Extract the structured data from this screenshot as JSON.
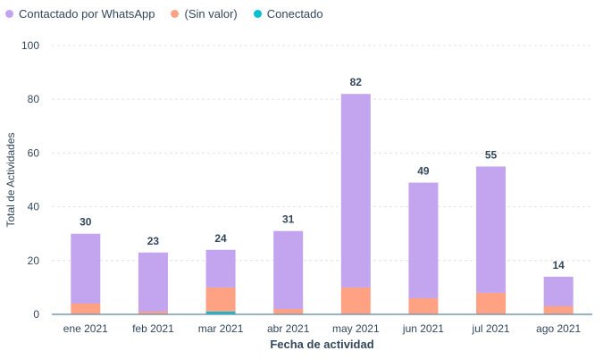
{
  "chart_data": {
    "type": "bar",
    "stacked": true,
    "title": "",
    "xlabel": "Fecha de actividad",
    "ylabel": "Total de Actividades",
    "ylim": [
      0,
      100
    ],
    "yticks": [
      0,
      20,
      40,
      60,
      80,
      100
    ],
    "grid": true,
    "legend_placement": "top-left",
    "categories": [
      "ene 2021",
      "feb 2021",
      "mar 2021",
      "abr 2021",
      "may 2021",
      "jun 2021",
      "jul 2021",
      "ago 2021"
    ],
    "series": [
      {
        "name": "Conectado",
        "color": "#00bfd0",
        "values": [
          0,
          0,
          1,
          0,
          0,
          0,
          0,
          0
        ]
      },
      {
        "name": "(Sin valor)",
        "color": "#ffa284",
        "values": [
          4,
          1,
          9,
          2,
          10,
          6,
          8,
          3
        ]
      },
      {
        "name": "Contactado por WhatsApp",
        "color": "#c3a4ee",
        "values": [
          26,
          22,
          14,
          29,
          72,
          43,
          47,
          11
        ]
      }
    ],
    "totals": [
      30,
      23,
      24,
      31,
      82,
      49,
      55,
      14
    ],
    "legend_order": [
      "Contactado por WhatsApp",
      "(Sin valor)",
      "Conectado"
    ]
  }
}
